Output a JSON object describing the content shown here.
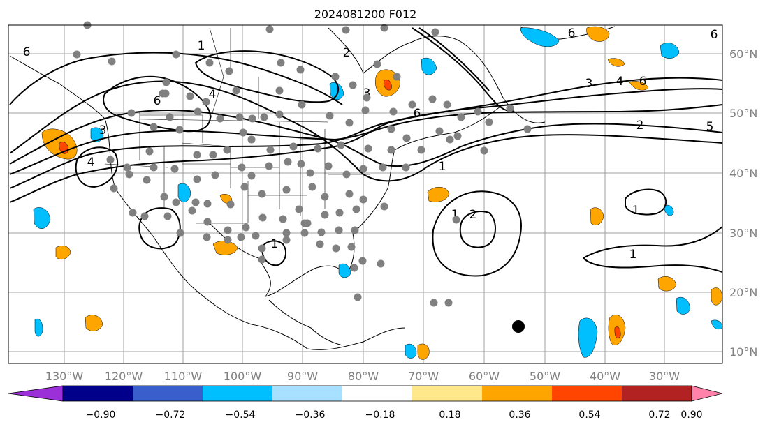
{
  "title": "2024081200 F012",
  "lon_labels": [
    "130°W",
    "120°W",
    "110°W",
    "100°W",
    "90°W",
    "80°W",
    "70°W",
    "60°W",
    "50°W",
    "40°W",
    "30°W"
  ],
  "lat_labels": [
    "60°N",
    "50°N",
    "40°N",
    "30°N",
    "20°N",
    "10°N"
  ],
  "colorbar": {
    "ticks": [
      "−0.90",
      "−0.72",
      "−0.54",
      "−0.36",
      "−0.18",
      "0.18",
      "0.36",
      "0.54",
      "0.72",
      "0.90"
    ],
    "colors": {
      "under": "#9b30d9",
      "bins": [
        "#00008b",
        "#3a5fcd",
        "#00bfff",
        "#a8e0ff",
        "#ffffff",
        "#ffe88a",
        "#ffa500",
        "#ff4500",
        "#b22222"
      ],
      "over": "#ff82ab"
    }
  },
  "contour_labels": [
    "1",
    "2",
    "3",
    "4",
    "5",
    "6"
  ],
  "icons": {
    "stations": "gray-dot",
    "storm": "black-dot"
  }
}
